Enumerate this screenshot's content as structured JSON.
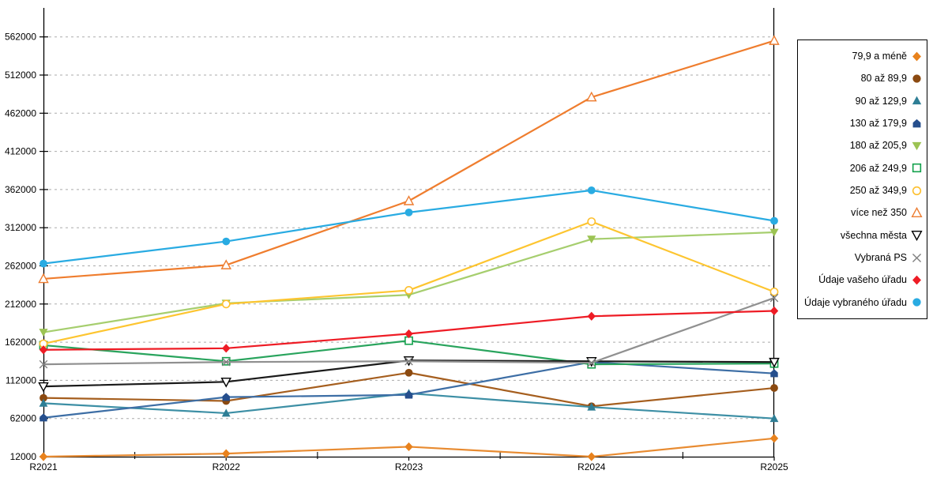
{
  "chart_data": {
    "type": "line",
    "categories": [
      "R2021",
      "R2022",
      "R2023",
      "R2024",
      "R2025"
    ],
    "series": [
      {
        "name": "79,9 a méně",
        "marker": "diamond",
        "color": "#E8821D",
        "line_color": "#E88B31",
        "values": [
          12000,
          16000,
          25000,
          12000,
          36000
        ]
      },
      {
        "name": "80 až 89,9",
        "marker": "circle",
        "color": "#8B4A11",
        "line_color": "#A55E1E",
        "values": [
          89000,
          85000,
          122000,
          78000,
          102000
        ]
      },
      {
        "name": "90 až 129,9",
        "marker": "triangle-up",
        "color": "#2E7E95",
        "line_color": "#3D8FA5",
        "values": [
          82000,
          69000,
          95000,
          77000,
          62000
        ]
      },
      {
        "name": "130 až 179,9",
        "marker": "pentagon",
        "color": "#264F8D",
        "line_color": "#3D6EA5",
        "values": [
          63000,
          90000,
          93000,
          136000,
          121000
        ]
      },
      {
        "name": "180 až 205,9",
        "marker": "triangle-down",
        "color": "#9CC353",
        "line_color": "#A6CE6E",
        "values": [
          175000,
          213000,
          224000,
          297000,
          306000
        ]
      },
      {
        "name": "206 až 249,9",
        "marker": "square-open",
        "color": "#12A14B",
        "line_color": "#29A45D",
        "values": [
          158000,
          137000,
          164000,
          133000,
          134000
        ]
      },
      {
        "name": "250 až 349,9",
        "marker": "circle-open",
        "color": "#FDBF2D",
        "line_color": "#FDC530",
        "values": [
          160000,
          212000,
          230000,
          320000,
          228000
        ]
      },
      {
        "name": "více než 350",
        "marker": "triangle-up-open",
        "color": "#ED7D31",
        "line_color": "#EF7D2E",
        "values": [
          245000,
          263000,
          347000,
          483000,
          557000
        ]
      },
      {
        "name": "všechna města",
        "marker": "triangle-down-open",
        "color": "#000000",
        "line_color": "#1A1A1A",
        "values": [
          104000,
          110000,
          138000,
          137000,
          136000
        ]
      },
      {
        "name": "Vybraná PS",
        "marker": "x",
        "color": "#7F7F7F",
        "line_color": "#909090",
        "values": [
          133000,
          136000,
          137000,
          135000,
          220000
        ]
      },
      {
        "name": "Údaje vašeho úřadu",
        "marker": "diamond",
        "color": "#EE1C25",
        "line_color": "#EE1C25",
        "values": [
          152000,
          154000,
          173000,
          196000,
          203000
        ]
      },
      {
        "name": "Údaje vybraného úřadu",
        "marker": "circle",
        "color": "#29ABE2",
        "line_color": "#29ABE2",
        "values": [
          265000,
          294000,
          332000,
          361000,
          321000
        ]
      }
    ],
    "title": "",
    "xlabel": "",
    "ylabel": "",
    "ylim": [
      12000,
      600000
    ],
    "yticks": [
      12000,
      62000,
      112000,
      162000,
      212000,
      262000,
      312000,
      362000,
      412000,
      462000,
      512000,
      562000
    ],
    "grid": "horizontal-dashed",
    "legend_position": "right"
  },
  "axes": {
    "y_labels": [
      "12000",
      "62000",
      "112000",
      "162000",
      "212000",
      "262000",
      "312000",
      "362000",
      "412000",
      "462000",
      "512000",
      "562000"
    ],
    "x_labels": [
      "R2021",
      "R2022",
      "R2023",
      "R2024",
      "R2025"
    ]
  },
  "colors": {
    "grid": "#ABABAB",
    "axis": "#000000",
    "background": "#FFFFFF"
  }
}
